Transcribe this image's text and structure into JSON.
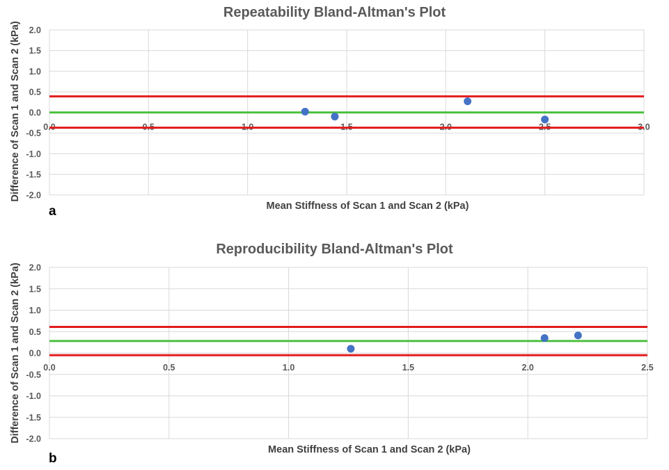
{
  "chart_data": [
    {
      "panel": "a",
      "type": "scatter",
      "title": "Repeatability Bland-Altman's Plot",
      "xlabel": "Mean Stiffness of Scan 1 and Scan 2 (kPa)",
      "ylabel": "Difference of Scan 1 and Scan 2 (kPa)",
      "xlim": [
        0.0,
        3.0
      ],
      "ylim": [
        -2.0,
        2.0
      ],
      "x_ticks": [
        "0.0",
        "0.5",
        "1.0",
        "1.5",
        "2.0",
        "2.5",
        "3.0"
      ],
      "y_ticks": [
        "2.0",
        "1.5",
        "1.0",
        "0.5",
        "0.0",
        "-0.5",
        "-1.0",
        "-1.5",
        "-2.0"
      ],
      "grid": true,
      "points": [
        {
          "x": 1.29,
          "y": 0.02
        },
        {
          "x": 1.44,
          "y": -0.1
        },
        {
          "x": 2.11,
          "y": 0.27
        },
        {
          "x": 2.5,
          "y": -0.17
        }
      ],
      "mean_line": 0.0,
      "limits_of_agreement": [
        0.39,
        -0.37
      ],
      "colors": {
        "points": "#4472c4",
        "mean": "#4fc142",
        "limits": "#e31b1b",
        "grid": "#d9d9d9"
      }
    },
    {
      "panel": "b",
      "type": "scatter",
      "title": "Reproducibility Bland-Altman's Plot",
      "xlabel": "Mean Stiffness of Scan 1 and Scan 2 (kPa)",
      "ylabel": "Difference of Scan 1 and Scan 2 (kPa)",
      "xlim": [
        0.0,
        2.5
      ],
      "ylim": [
        -2.0,
        2.0
      ],
      "x_ticks": [
        "0.0",
        "0.5",
        "1.0",
        "1.5",
        "2.0",
        "2.5"
      ],
      "y_ticks": [
        "2.0",
        "1.5",
        "1.0",
        "0.5",
        "0.0",
        "-0.5",
        "-1.0",
        "-1.5",
        "-2.0"
      ],
      "grid": true,
      "points": [
        {
          "x": 1.26,
          "y": 0.1
        },
        {
          "x": 2.07,
          "y": 0.35
        },
        {
          "x": 2.21,
          "y": 0.41
        }
      ],
      "mean_line": 0.28,
      "limits_of_agreement": [
        0.61,
        -0.05
      ],
      "colors": {
        "points": "#4472c4",
        "mean": "#4fc142",
        "limits": "#e31b1b",
        "grid": "#d9d9d9"
      }
    }
  ]
}
